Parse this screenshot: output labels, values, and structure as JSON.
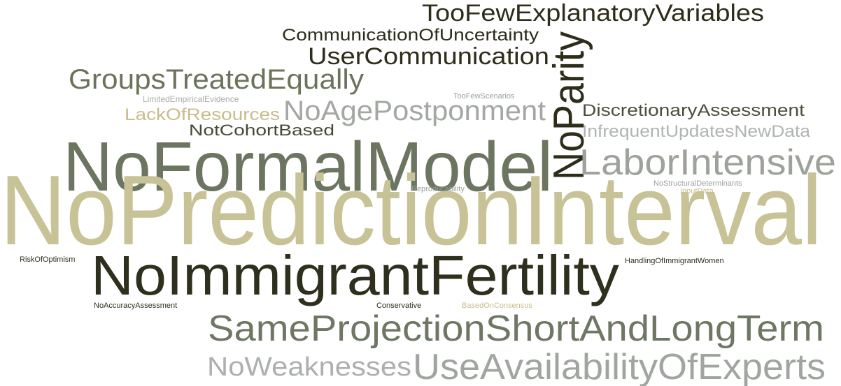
{
  "words": [
    "TooFewExplanatoryVariables",
    "CommunicationOfUncertainty",
    "UserCommunication",
    "NoParity",
    "GroupsTreatedEqually",
    "LimitedEmpiricalEvidence",
    "TooFewScenarios",
    "LackOfResources",
    "NoAgePostponment",
    "DiscretionaryAssessment",
    "NotCohortBased",
    "InfrequentUpdatesNewData",
    "NoFormalModel",
    "LaborIntensive",
    "NoStructuralDeterminants",
    "InputData",
    "Reproducability",
    "NoPredictionInterval",
    "RiskOfOptimism",
    "HandlingOfImmigrantWomen",
    "NoImmigrantFertility",
    "NoAccuracyAssessment",
    "Conservative",
    "BasedOnConsensus",
    "SameProjectionShortAndLongTerm",
    "NoWeaknesses",
    "UseAvailabilityOfExperts"
  ]
}
